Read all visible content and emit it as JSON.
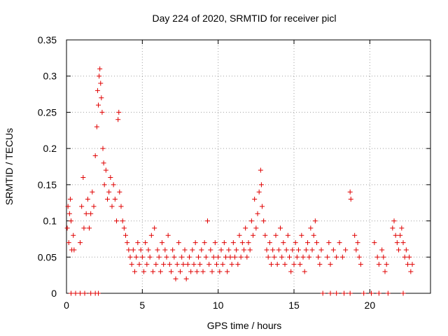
{
  "chart_data": {
    "type": "scatter",
    "title": "Day 224 of 2020, SRMTID for receiver picl",
    "xlabel": "GPS time / hours",
    "ylabel": "SRMTID / TECUs",
    "xlim": [
      0,
      24
    ],
    "ylim": [
      0,
      0.35
    ],
    "xticks": [
      0,
      5,
      10,
      15,
      20
    ],
    "xtick_labels": [
      "0",
      "5",
      "10",
      "15",
      "20"
    ],
    "yticks": [
      0,
      0.05,
      0.1,
      0.15,
      0.2,
      0.25,
      0.3,
      0.35
    ],
    "ytick_labels": [
      "0",
      "0.05",
      "0.1",
      "0.15",
      "0.2",
      "0.25",
      "0.3",
      "0.35"
    ],
    "grid": true,
    "marker": "+",
    "series": [
      {
        "color": "#e00000",
        "points": [
          [
            0.05,
            0.09
          ],
          [
            0.1,
            0.12
          ],
          [
            0.15,
            0.07
          ],
          [
            0.2,
            0.11
          ],
          [
            0.25,
            0.13
          ],
          [
            0.3,
            0.1
          ],
          [
            0.35,
            0.06
          ],
          [
            0.45,
            0.08
          ],
          [
            0.5,
            0.06
          ],
          [
            0.9,
            0.07
          ],
          [
            1.0,
            0.12
          ],
          [
            1.1,
            0.16
          ],
          [
            1.15,
            0.09
          ],
          [
            1.3,
            0.11
          ],
          [
            1.4,
            0.13
          ],
          [
            1.5,
            0.09
          ],
          [
            1.6,
            0.11
          ],
          [
            1.7,
            0.14
          ],
          [
            1.8,
            0.12
          ],
          [
            1.9,
            0.19
          ],
          [
            2.0,
            0.23
          ],
          [
            2.05,
            0.28
          ],
          [
            2.1,
            0.26
          ],
          [
            2.15,
            0.3
          ],
          [
            2.2,
            0.31
          ],
          [
            2.25,
            0.29
          ],
          [
            2.3,
            0.27
          ],
          [
            2.35,
            0.25
          ],
          [
            2.4,
            0.2
          ],
          [
            2.45,
            0.18
          ],
          [
            2.5,
            0.15
          ],
          [
            2.6,
            0.17
          ],
          [
            2.7,
            0.13
          ],
          [
            2.8,
            0.14
          ],
          [
            2.9,
            0.16
          ],
          [
            3.0,
            0.12
          ],
          [
            3.1,
            0.15
          ],
          [
            3.2,
            0.13
          ],
          [
            3.3,
            0.1
          ],
          [
            3.4,
            0.24
          ],
          [
            3.45,
            0.25
          ],
          [
            3.5,
            0.14
          ],
          [
            3.6,
            0.12
          ],
          [
            3.7,
            0.1
          ],
          [
            3.8,
            0.09
          ],
          [
            3.9,
            0.08
          ],
          [
            4.0,
            0.07
          ],
          [
            4.1,
            0.06
          ],
          [
            4.2,
            0.05
          ],
          [
            4.3,
            0.04
          ],
          [
            4.4,
            0.06
          ],
          [
            4.5,
            0.03
          ],
          [
            4.6,
            0.05
          ],
          [
            4.7,
            0.07
          ],
          [
            4.8,
            0.04
          ],
          [
            4.9,
            0.06
          ],
          [
            5.0,
            0.05
          ],
          [
            5.1,
            0.03
          ],
          [
            5.2,
            0.07
          ],
          [
            5.3,
            0.04
          ],
          [
            5.4,
            0.06
          ],
          [
            5.5,
            0.05
          ],
          [
            5.6,
            0.08
          ],
          [
            5.7,
            0.03
          ],
          [
            5.8,
            0.09
          ],
          [
            5.9,
            0.04
          ],
          [
            6.0,
            0.06
          ],
          [
            6.1,
            0.05
          ],
          [
            6.2,
            0.03
          ],
          [
            6.3,
            0.07
          ],
          [
            6.4,
            0.04
          ],
          [
            6.5,
            0.06
          ],
          [
            6.6,
            0.05
          ],
          [
            6.7,
            0.08
          ],
          [
            6.8,
            0.04
          ],
          [
            6.9,
            0.03
          ],
          [
            7.0,
            0.06
          ],
          [
            7.1,
            0.05
          ],
          [
            7.2,
            0.02
          ],
          [
            7.3,
            0.04
          ],
          [
            7.4,
            0.07
          ],
          [
            7.5,
            0.03
          ],
          [
            7.6,
            0.05
          ],
          [
            7.7,
            0.04
          ],
          [
            7.8,
            0.06
          ],
          [
            7.9,
            0.02
          ],
          [
            8.0,
            0.04
          ],
          [
            8.1,
            0.05
          ],
          [
            8.2,
            0.03
          ],
          [
            8.3,
            0.06
          ],
          [
            8.4,
            0.04
          ],
          [
            8.5,
            0.07
          ],
          [
            8.6,
            0.03
          ],
          [
            8.7,
            0.05
          ],
          [
            8.8,
            0.04
          ],
          [
            8.9,
            0.06
          ],
          [
            9.0,
            0.03
          ],
          [
            9.1,
            0.07
          ],
          [
            9.2,
            0.05
          ],
          [
            9.3,
            0.1
          ],
          [
            9.4,
            0.04
          ],
          [
            9.5,
            0.06
          ],
          [
            9.6,
            0.03
          ],
          [
            9.7,
            0.05
          ],
          [
            9.8,
            0.07
          ],
          [
            9.9,
            0.04
          ],
          [
            10.0,
            0.05
          ],
          [
            10.1,
            0.03
          ],
          [
            10.2,
            0.06
          ],
          [
            10.3,
            0.04
          ],
          [
            10.4,
            0.07
          ],
          [
            10.5,
            0.05
          ],
          [
            10.6,
            0.03
          ],
          [
            10.7,
            0.06
          ],
          [
            10.8,
            0.05
          ],
          [
            10.9,
            0.04
          ],
          [
            11.0,
            0.07
          ],
          [
            11.1,
            0.05
          ],
          [
            11.2,
            0.06
          ],
          [
            11.3,
            0.04
          ],
          [
            11.4,
            0.08
          ],
          [
            11.5,
            0.05
          ],
          [
            11.6,
            0.07
          ],
          [
            11.7,
            0.06
          ],
          [
            11.8,
            0.09
          ],
          [
            11.9,
            0.05
          ],
          [
            12.0,
            0.07
          ],
          [
            12.1,
            0.06
          ],
          [
            12.2,
            0.1
          ],
          [
            12.3,
            0.08
          ],
          [
            12.4,
            0.13
          ],
          [
            12.5,
            0.09
          ],
          [
            12.6,
            0.11
          ],
          [
            12.7,
            0.14
          ],
          [
            12.8,
            0.17
          ],
          [
            12.85,
            0.15
          ],
          [
            12.9,
            0.12
          ],
          [
            13.0,
            0.1
          ],
          [
            13.1,
            0.08
          ],
          [
            13.2,
            0.06
          ],
          [
            13.3,
            0.05
          ],
          [
            13.4,
            0.07
          ],
          [
            13.5,
            0.04
          ],
          [
            13.6,
            0.06
          ],
          [
            13.7,
            0.05
          ],
          [
            13.8,
            0.08
          ],
          [
            13.9,
            0.04
          ],
          [
            14.0,
            0.06
          ],
          [
            14.1,
            0.09
          ],
          [
            14.2,
            0.05
          ],
          [
            14.3,
            0.07
          ],
          [
            14.4,
            0.04
          ],
          [
            14.5,
            0.06
          ],
          [
            14.6,
            0.08
          ],
          [
            14.7,
            0.05
          ],
          [
            14.8,
            0.03
          ],
          [
            14.9,
            0.06
          ],
          [
            15.0,
            0.04
          ],
          [
            15.1,
            0.07
          ],
          [
            15.2,
            0.05
          ],
          [
            15.3,
            0.06
          ],
          [
            15.4,
            0.04
          ],
          [
            15.5,
            0.08
          ],
          [
            15.6,
            0.05
          ],
          [
            15.7,
            0.03
          ],
          [
            15.8,
            0.06
          ],
          [
            15.9,
            0.07
          ],
          [
            16.0,
            0.05
          ],
          [
            16.1,
            0.09
          ],
          [
            16.2,
            0.06
          ],
          [
            16.3,
            0.08
          ],
          [
            16.4,
            0.1
          ],
          [
            16.5,
            0.07
          ],
          [
            16.6,
            0.05
          ],
          [
            16.7,
            0.04
          ],
          [
            16.8,
            0.06
          ],
          [
            17.2,
            0.05
          ],
          [
            17.3,
            0.07
          ],
          [
            17.4,
            0.04
          ],
          [
            17.6,
            0.06
          ],
          [
            17.8,
            0.05
          ],
          [
            18.0,
            0.07
          ],
          [
            18.2,
            0.05
          ],
          [
            18.4,
            0.06
          ],
          [
            18.7,
            0.14
          ],
          [
            18.75,
            0.13
          ],
          [
            19.0,
            0.08
          ],
          [
            19.1,
            0.06
          ],
          [
            19.2,
            0.07
          ],
          [
            19.3,
            0.05
          ],
          [
            19.4,
            0.04
          ],
          [
            20.3,
            0.07
          ],
          [
            20.5,
            0.05
          ],
          [
            20.6,
            0.04
          ],
          [
            20.8,
            0.06
          ],
          [
            20.9,
            0.05
          ],
          [
            21.0,
            0.03
          ],
          [
            21.1,
            0.04
          ],
          [
            21.5,
            0.09
          ],
          [
            21.6,
            0.1
          ],
          [
            21.7,
            0.08
          ],
          [
            21.8,
            0.07
          ],
          [
            21.9,
            0.06
          ],
          [
            22.0,
            0.08
          ],
          [
            22.1,
            0.09
          ],
          [
            22.2,
            0.07
          ],
          [
            22.3,
            0.05
          ],
          [
            22.4,
            0.06
          ],
          [
            22.5,
            0.04
          ],
          [
            22.6,
            0.05
          ],
          [
            22.7,
            0.03
          ],
          [
            22.8,
            0.04
          ],
          [
            0.3,
            0
          ],
          [
            0.6,
            0
          ],
          [
            0.9,
            0
          ],
          [
            1.2,
            0
          ],
          [
            1.6,
            0
          ],
          [
            1.9,
            0
          ],
          [
            2.1,
            0
          ],
          [
            16.9,
            0
          ],
          [
            17.4,
            0
          ],
          [
            17.8,
            0
          ],
          [
            18.3,
            0
          ],
          [
            18.7,
            0
          ],
          [
            19.6,
            0
          ],
          [
            20.1,
            0
          ],
          [
            20.6,
            0
          ],
          [
            21.2,
            0
          ],
          [
            22.2,
            0
          ]
        ]
      }
    ]
  }
}
